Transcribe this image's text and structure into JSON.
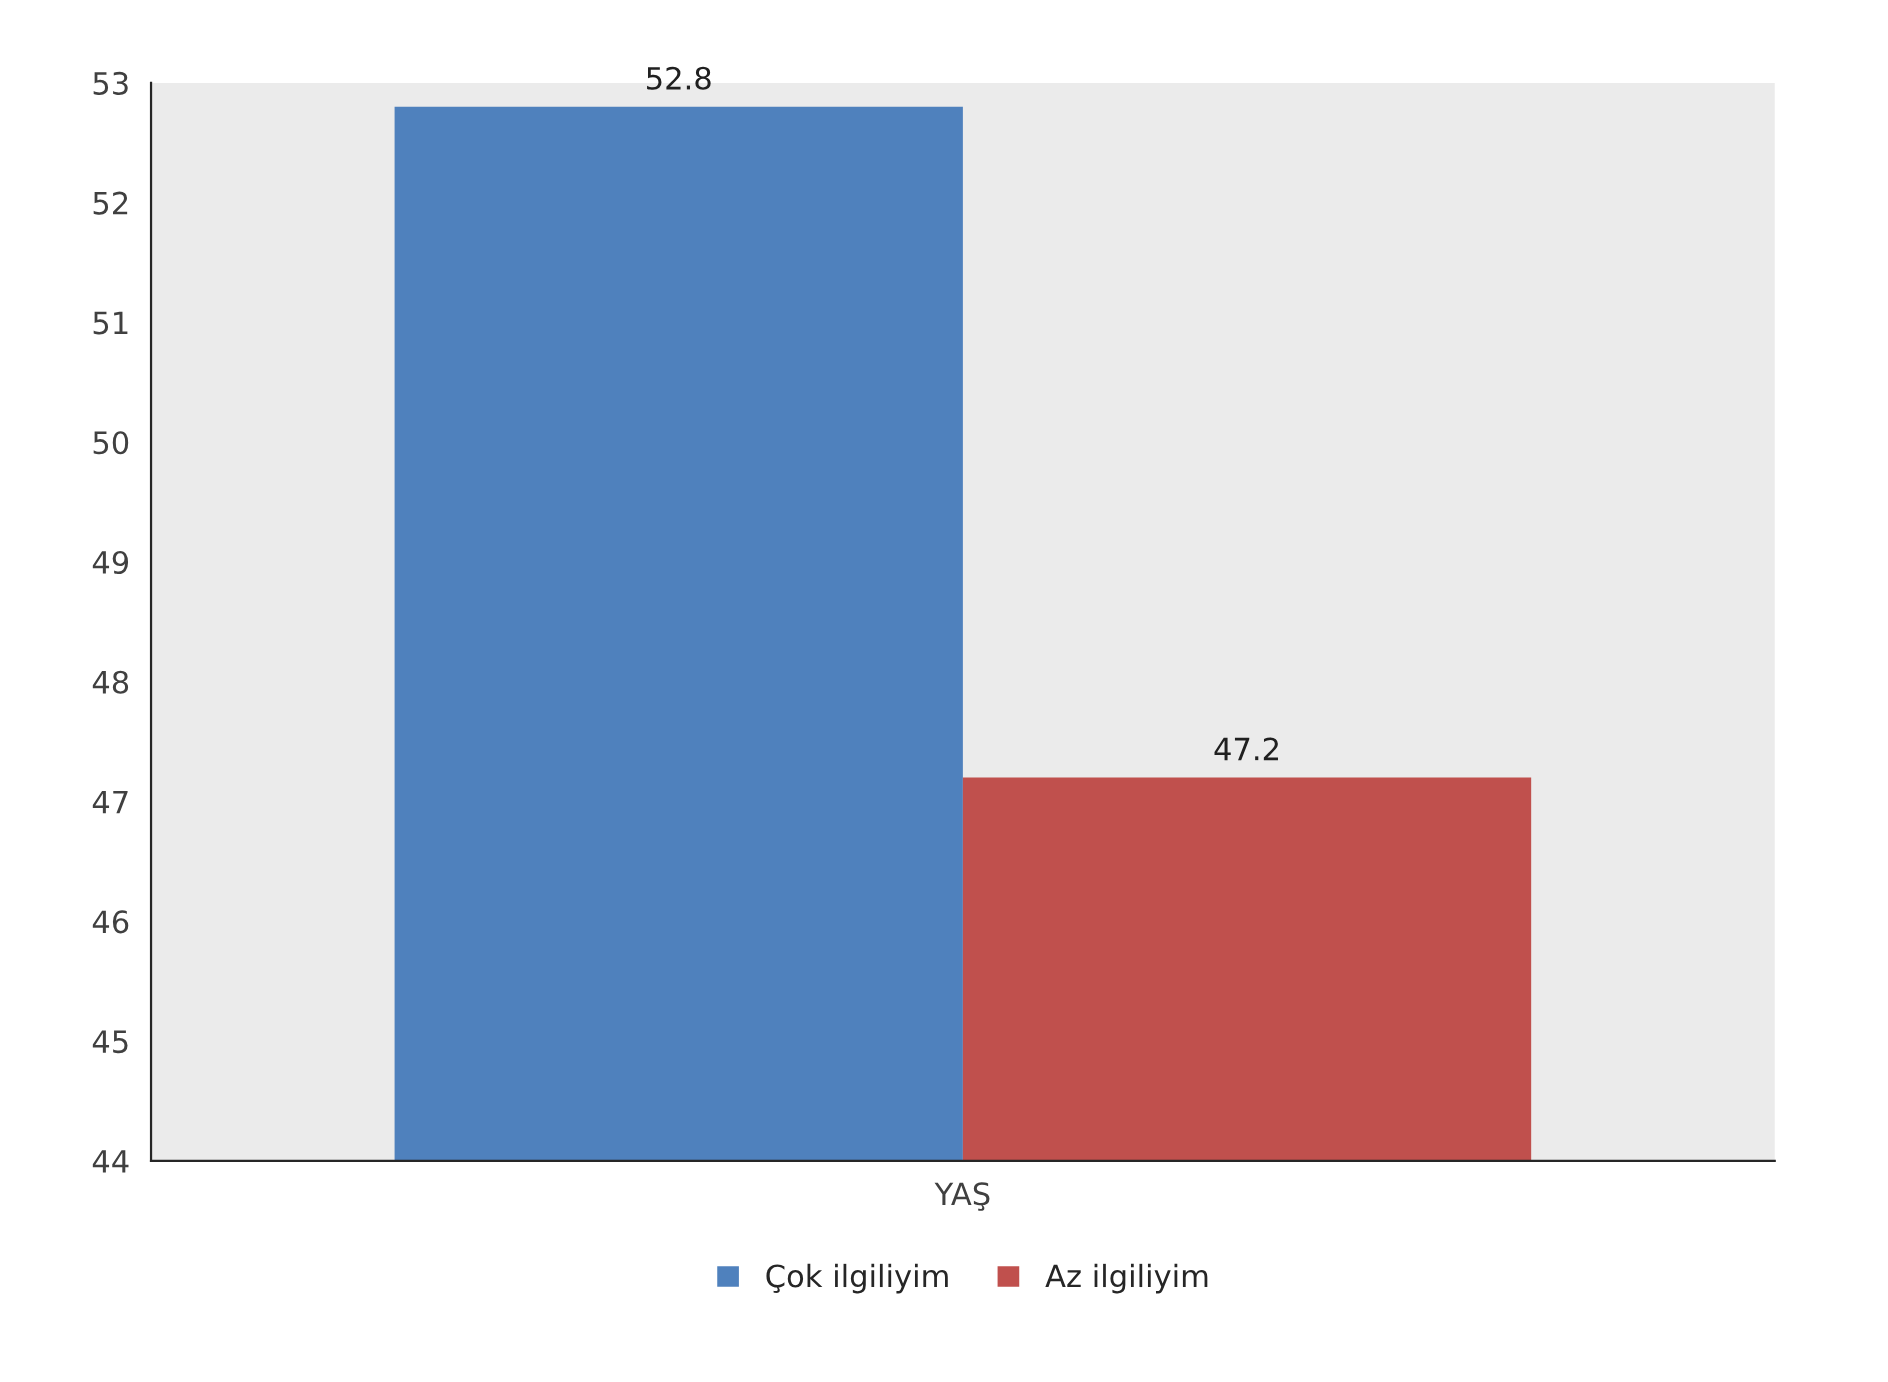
{
  "chart_data": {
    "type": "bar",
    "categories": [
      "YAŞ"
    ],
    "series": [
      {
        "name": "Çok ilgiliyim",
        "color": "#4f81bd",
        "values": [
          52.8
        ]
      },
      {
        "name": "Az ilgiliyim",
        "color": "#c0504d",
        "values": [
          47.2
        ]
      }
    ],
    "ylim": [
      44,
      53
    ],
    "yticks": [
      44,
      45,
      46,
      47,
      48,
      49,
      50,
      51,
      52,
      53
    ],
    "data_labels": true,
    "grid": false,
    "legend": "bottom"
  }
}
